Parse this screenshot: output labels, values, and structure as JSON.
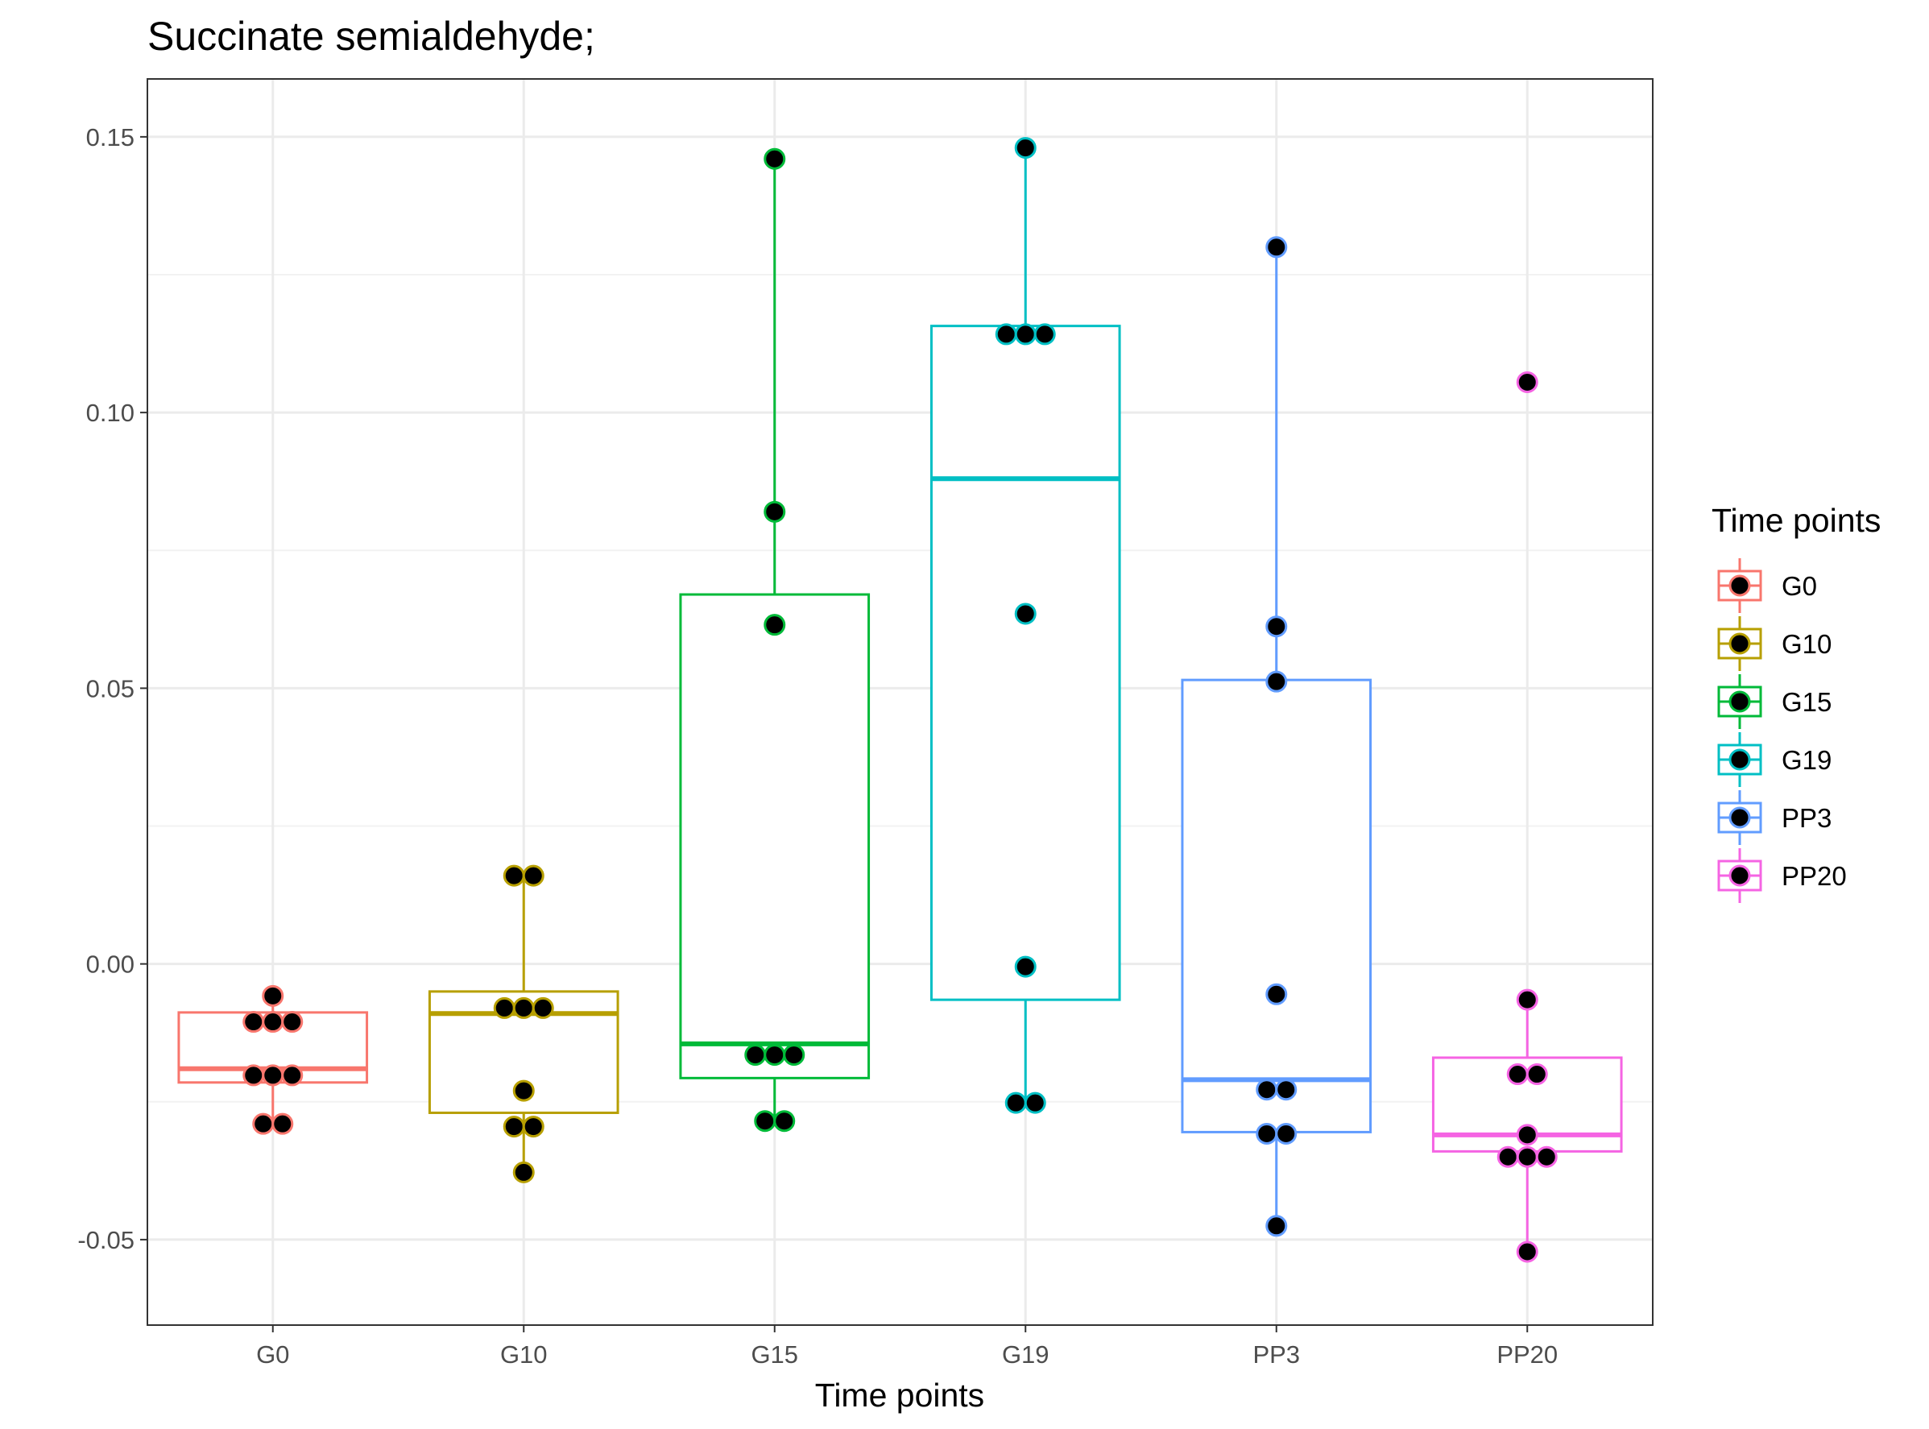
{
  "chart_data": {
    "type": "box",
    "title": "Succinate semialdehyde;",
    "xlabel": "Time points",
    "ylabel": "",
    "ylim": [
      -0.0655,
      0.1605
    ],
    "yticks": [
      -0.05,
      0.0,
      0.05,
      0.1,
      0.15
    ],
    "ytick_labels": [
      "-0.05",
      "0.00",
      "0.05",
      "0.10",
      "0.15"
    ],
    "categories": [
      "G0",
      "G10",
      "G15",
      "G19",
      "PP3",
      "PP20"
    ],
    "grid": true,
    "legend": {
      "title": "Time points",
      "position": "right"
    },
    "series": [
      {
        "name": "G0",
        "color": "#F8766D",
        "box": {
          "lower_whisker": -0.029,
          "q1": -0.0215,
          "median": -0.019,
          "q3": -0.0088,
          "upper_whisker": -0.0058
        },
        "points": [
          -0.0058,
          -0.0105,
          -0.0105,
          -0.0105,
          -0.0202,
          -0.0202,
          -0.0202,
          -0.029,
          -0.029
        ]
      },
      {
        "name": "G10",
        "color": "#B79F00",
        "box": {
          "lower_whisker": -0.0378,
          "q1": -0.027,
          "median": -0.009,
          "q3": -0.005,
          "upper_whisker": 0.016
        },
        "points": [
          0.016,
          0.016,
          -0.008,
          -0.008,
          -0.008,
          -0.023,
          -0.0295,
          -0.0295,
          -0.0378
        ]
      },
      {
        "name": "G15",
        "color": "#00BA38",
        "box": {
          "lower_whisker": -0.0285,
          "q1": -0.0207,
          "median": -0.0145,
          "q3": 0.067,
          "upper_whisker": 0.146
        },
        "points": [
          0.146,
          0.082,
          0.0615,
          -0.0165,
          -0.0165,
          -0.0165,
          -0.0285,
          -0.0285
        ]
      },
      {
        "name": "G19",
        "color": "#00BFC4",
        "box": {
          "lower_whisker": -0.0252,
          "q1": -0.0065,
          "median": 0.088,
          "q3": 0.1157,
          "upper_whisker": 0.148
        },
        "points": [
          0.148,
          0.1142,
          0.1142,
          0.1142,
          0.0635,
          -0.0005,
          -0.0252,
          -0.0252
        ]
      },
      {
        "name": "PP3",
        "color": "#619CFF",
        "box": {
          "lower_whisker": -0.0475,
          "q1": -0.0305,
          "median": -0.021,
          "q3": 0.0515,
          "upper_whisker": 0.13
        },
        "points": [
          0.13,
          0.0612,
          0.0512,
          -0.0055,
          -0.0228,
          -0.0228,
          -0.0308,
          -0.0308,
          -0.0475
        ]
      },
      {
        "name": "PP20",
        "color": "#F564E3",
        "box": {
          "lower_whisker": -0.0522,
          "q1": -0.034,
          "median": -0.031,
          "q3": -0.017,
          "upper_whisker": -0.0065
        },
        "points": [
          0.1055,
          -0.0065,
          -0.02,
          -0.02,
          -0.031,
          -0.035,
          -0.035,
          -0.035,
          -0.0522
        ]
      }
    ]
  }
}
